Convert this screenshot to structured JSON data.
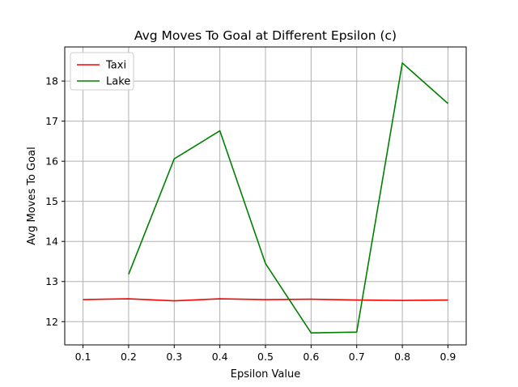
{
  "chart_data": {
    "type": "line",
    "title": "Avg Moves To Goal at Different Epsilon (c)",
    "xlabel": "Epsilon Value",
    "ylabel": "Avg Moves To Goal",
    "xlim": [
      0.06,
      0.94
    ],
    "ylim": [
      11.42,
      18.85
    ],
    "xticks": [
      0.1,
      0.2,
      0.3,
      0.4,
      0.5,
      0.6,
      0.7,
      0.8,
      0.9
    ],
    "xtick_labels": [
      "0.1",
      "0.2",
      "0.3",
      "0.4",
      "0.5",
      "0.6",
      "0.7",
      "0.8",
      "0.9"
    ],
    "yticks": [
      12,
      13,
      14,
      15,
      16,
      17,
      18
    ],
    "ytick_labels": [
      "12",
      "13",
      "14",
      "15",
      "16",
      "17",
      "18"
    ],
    "grid": true,
    "legend": "top-left",
    "series": [
      {
        "name": "Taxi",
        "color": "#ff0000",
        "x": [
          0.1,
          0.2,
          0.3,
          0.4,
          0.5,
          0.6,
          0.7,
          0.8,
          0.9
        ],
        "values": [
          12.55,
          12.57,
          12.52,
          12.57,
          12.55,
          12.56,
          12.54,
          12.53,
          12.54
        ]
      },
      {
        "name": "Lake",
        "color": "#008000",
        "x": [
          0.2,
          0.3,
          0.4,
          0.5,
          0.6,
          0.7,
          0.8,
          0.9
        ],
        "values": [
          13.18,
          16.06,
          16.76,
          13.45,
          11.72,
          11.74,
          18.45,
          17.44
        ]
      }
    ]
  }
}
